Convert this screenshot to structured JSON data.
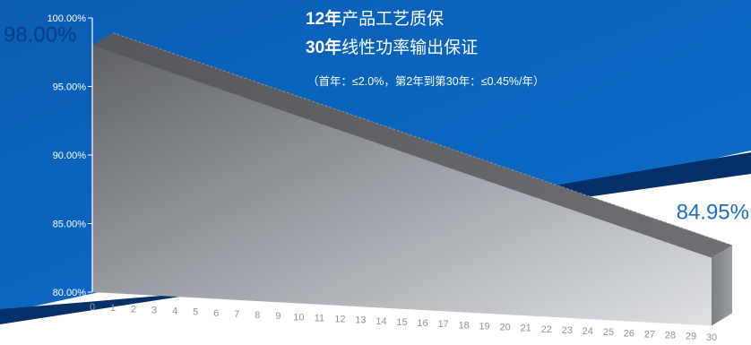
{
  "headline": {
    "line1_bold": "12年",
    "line1_rest": "产品工艺质保",
    "line2_bold": "30年",
    "line2_rest": "线性功率输出保证",
    "note": "（首年：≤2.0%，第2年到第30年：≤0.45%/年）"
  },
  "colors": {
    "background_blue": "#0866be",
    "dark_navy": "#06306a",
    "start_label": "#0b3b84",
    "end_label": "#1d6fc4"
  },
  "chart_data": {
    "type": "area",
    "title": "",
    "xlabel": "",
    "ylabel": "",
    "x": [
      0,
      1,
      2,
      3,
      4,
      5,
      6,
      7,
      8,
      9,
      10,
      11,
      12,
      13,
      14,
      15,
      16,
      17,
      18,
      19,
      20,
      21,
      22,
      23,
      24,
      25,
      26,
      27,
      28,
      29,
      30
    ],
    "x_tick_labels": [
      "0",
      "1",
      "2",
      "3",
      "4",
      "5",
      "6",
      "7",
      "8",
      "9",
      "10",
      "11",
      "12",
      "13",
      "14",
      "15",
      "16",
      "17",
      "18",
      "19",
      "20",
      "21",
      "22",
      "23",
      "24",
      "25",
      "26",
      "27",
      "28",
      "29",
      "30"
    ],
    "y_ticks": [
      80,
      85,
      90,
      95,
      100
    ],
    "y_tick_labels": [
      "80.00%",
      "85.00%",
      "90.00%",
      "95.00%",
      "100.00%"
    ],
    "ylim": [
      80,
      100
    ],
    "series": [
      {
        "points": [
          [
            0,
            98.0
          ],
          [
            30,
            84.95
          ]
        ]
      }
    ],
    "start_label": "98.00%",
    "end_label": "84.95%",
    "grid": false,
    "legend": "none"
  }
}
